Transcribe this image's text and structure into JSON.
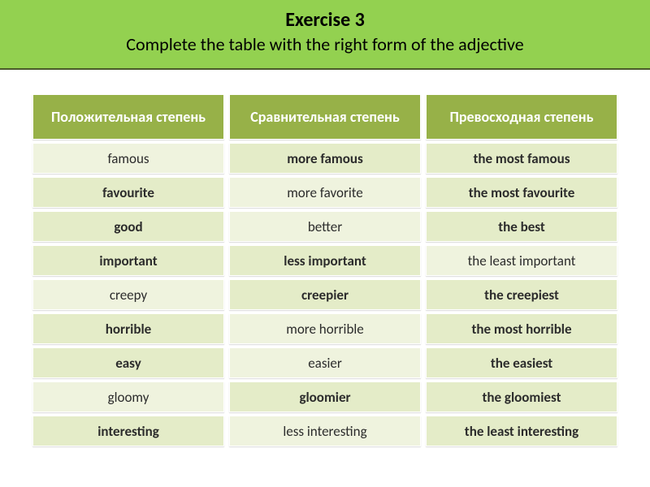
{
  "header": {
    "title": "Exercise 3",
    "subtitle": "Complete the table with the right form of the adjective"
  },
  "colors": {
    "banner_bg": "#93d150",
    "banner_border": "#4a5a2a",
    "header_cell_bg": "#97b148",
    "header_cell_fg": "#ffffff",
    "given_bg": "#eff3de",
    "fill_bg": "#e4ecc8",
    "cell_fg": "#2c2c2c"
  },
  "table": {
    "columns": [
      "Положительная степень",
      "Сравнительная степень",
      "Превосходная степень"
    ],
    "rows": [
      {
        "pos": {
          "text": "famous",
          "kind": "given"
        },
        "cmp": {
          "text": "more famous",
          "kind": "fill"
        },
        "sup": {
          "text": "the most famous",
          "kind": "fill"
        }
      },
      {
        "pos": {
          "text": "favourite",
          "kind": "fill"
        },
        "cmp": {
          "text": "more favorite",
          "kind": "given"
        },
        "sup": {
          "text": "the most favourite",
          "kind": "fill"
        }
      },
      {
        "pos": {
          "text": "good",
          "kind": "fill"
        },
        "cmp": {
          "text": "better",
          "kind": "given"
        },
        "sup": {
          "text": "the best",
          "kind": "fill"
        }
      },
      {
        "pos": {
          "text": "important",
          "kind": "fill"
        },
        "cmp": {
          "text": "less important",
          "kind": "fill"
        },
        "sup": {
          "text": "the least important",
          "kind": "given"
        }
      },
      {
        "pos": {
          "text": "creepy",
          "kind": "given"
        },
        "cmp": {
          "text": "creepier",
          "kind": "fill"
        },
        "sup": {
          "text": "the creepiest",
          "kind": "fill"
        }
      },
      {
        "pos": {
          "text": "horrible",
          "kind": "fill"
        },
        "cmp": {
          "text": "more horrible",
          "kind": "given"
        },
        "sup": {
          "text": "the most horrible",
          "kind": "fill"
        }
      },
      {
        "pos": {
          "text": "easy",
          "kind": "fill"
        },
        "cmp": {
          "text": "easier",
          "kind": "given"
        },
        "sup": {
          "text": "the easiest",
          "kind": "fill"
        }
      },
      {
        "pos": {
          "text": "gloomy",
          "kind": "given"
        },
        "cmp": {
          "text": "gloomier",
          "kind": "fill"
        },
        "sup": {
          "text": "the gloomiest",
          "kind": "fill"
        }
      },
      {
        "pos": {
          "text": "interesting",
          "kind": "fill"
        },
        "cmp": {
          "text": "less interesting",
          "kind": "given"
        },
        "sup": {
          "text": "the least interesting",
          "kind": "fill"
        }
      }
    ]
  }
}
